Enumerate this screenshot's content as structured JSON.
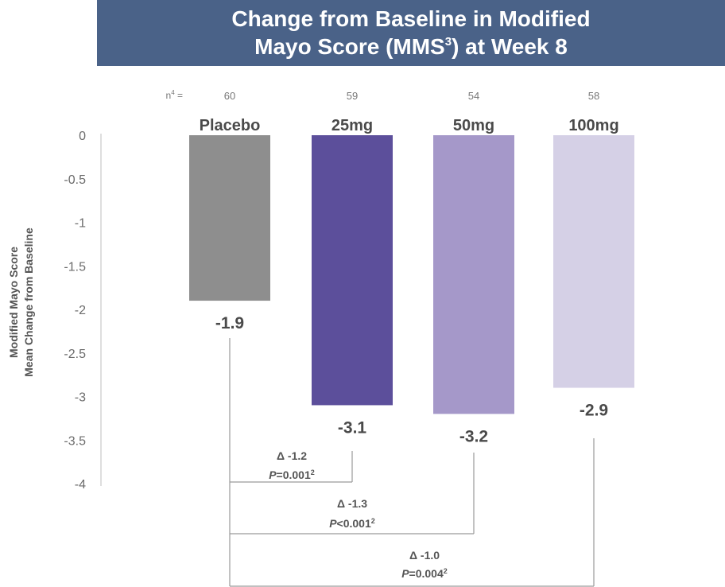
{
  "header": {
    "title_line1": "Change from Baseline in Modified",
    "title_line2_pre": "Mayo Score (MMS",
    "title_line2_sup": "3",
    "title_line2_post": ") at Week 8"
  },
  "chart_data": {
    "type": "bar",
    "ylabel_line1": "Modified Mayo Score",
    "ylabel_line2": "Mean Change from Baseline",
    "ylim": [
      -4,
      0
    ],
    "yticks": [
      "0",
      "-0.5",
      "-1",
      "-1.5",
      "-2",
      "-2.5",
      "-3",
      "-3.5",
      "-4"
    ],
    "n_label": "n",
    "n_label_sup": "4",
    "n_label_suffix": " =",
    "categories": [
      "Placebo",
      "25mg",
      "50mg",
      "100mg"
    ],
    "n_values": [
      "60",
      "59",
      "54",
      "58"
    ],
    "values": [
      -1.9,
      -3.1,
      -3.2,
      -2.9
    ],
    "value_labels": [
      "-1.9",
      "-3.1",
      "-3.2",
      "-2.9"
    ],
    "colors": [
      "#8e8e8e",
      "#5c4f9b",
      "#a598c9",
      "#d5d0e6"
    ],
    "comparisons": [
      {
        "delta": "Δ -1.2",
        "p_prefix": "P",
        "p_text": "=0.001",
        "p_sup": "2"
      },
      {
        "delta": "Δ -1.3",
        "p_prefix": "P",
        "p_text": "<0.001",
        "p_sup": "2"
      },
      {
        "delta": "Δ -1.0",
        "p_prefix": "P",
        "p_text": "=0.004",
        "p_sup": "2"
      }
    ]
  }
}
